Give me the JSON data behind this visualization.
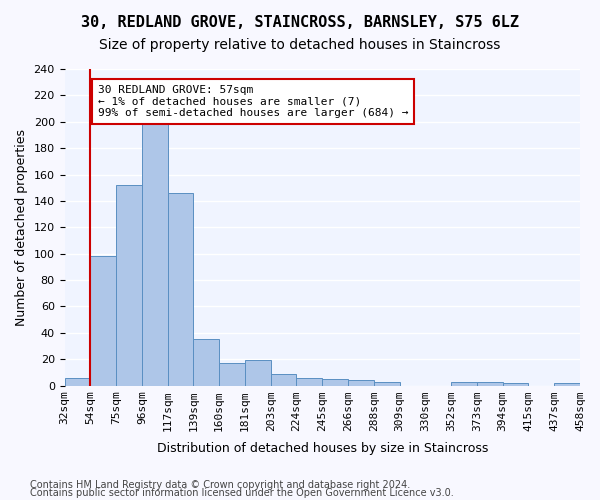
{
  "title1": "30, REDLAND GROVE, STAINCROSS, BARNSLEY, S75 6LZ",
  "title2": "Size of property relative to detached houses in Staincross",
  "xlabel": "Distribution of detached houses by size in Staincross",
  "ylabel": "Number of detached properties",
  "bar_values": [
    6,
    98,
    152,
    199,
    146,
    35,
    17,
    19,
    9,
    6,
    5,
    4,
    3,
    0,
    0,
    3,
    3,
    2,
    0,
    2
  ],
  "bin_labels": [
    "32sqm",
    "54sqm",
    "75sqm",
    "96sqm",
    "117sqm",
    "139sqm",
    "160sqm",
    "181sqm",
    "203sqm",
    "224sqm",
    "245sqm",
    "266sqm",
    "288sqm",
    "309sqm",
    "330sqm",
    "352sqm",
    "373sqm",
    "394sqm",
    "415sqm",
    "437sqm",
    "458sqm"
  ],
  "bar_color": "#aec6e8",
  "bar_edge_color": "#5a8fc2",
  "vline_x": 1,
  "vline_color": "#cc0000",
  "annotation_text": "30 REDLAND GROVE: 57sqm\n← 1% of detached houses are smaller (7)\n99% of semi-detached houses are larger (684) →",
  "annotation_box_color": "#ffffff",
  "annotation_box_edge": "#cc0000",
  "ylim": [
    0,
    240
  ],
  "yticks": [
    0,
    20,
    40,
    60,
    80,
    100,
    120,
    140,
    160,
    180,
    200,
    220,
    240
  ],
  "footer1": "Contains HM Land Registry data © Crown copyright and database right 2024.",
  "footer2": "Contains public sector information licensed under the Open Government Licence v3.0.",
  "bg_color": "#f0f4ff",
  "grid_color": "#ffffff",
  "title1_fontsize": 11,
  "title2_fontsize": 10,
  "ylabel_fontsize": 9,
  "xlabel_fontsize": 9,
  "tick_fontsize": 8,
  "annotation_fontsize": 8,
  "footer_fontsize": 7
}
